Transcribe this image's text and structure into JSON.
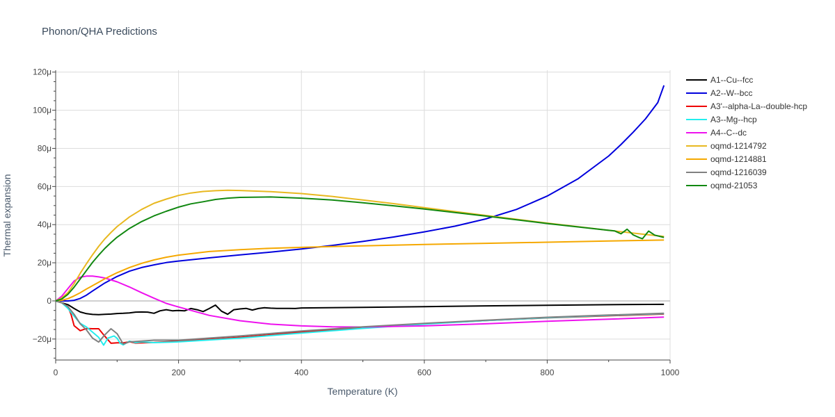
{
  "chart_data": {
    "type": "line",
    "title": "Phonon/QHA Predictions",
    "xlabel": "Temperature (K)",
    "ylabel": "Thermal expansion",
    "xlim": [
      0,
      1000
    ],
    "ylim": [
      -31,
      121
    ],
    "xticks": [
      0,
      200,
      400,
      600,
      800,
      1000
    ],
    "xtick_labels": [
      "0",
      "200",
      "400",
      "600",
      "800",
      "1000"
    ],
    "yticks": [
      -20,
      0,
      20,
      40,
      60,
      80,
      100,
      120
    ],
    "ytick_labels": [
      "−20μ",
      "0",
      "20μ",
      "40μ",
      "60μ",
      "80μ",
      "100μ",
      "120μ"
    ],
    "y_unit": "μ",
    "grid": true,
    "legend_position": "right",
    "series": [
      {
        "name": "A1--Cu--fcc",
        "color": "#000000",
        "x": [
          0,
          10,
          20,
          30,
          40,
          50,
          60,
          70,
          80,
          90,
          100,
          110,
          120,
          130,
          140,
          150,
          160,
          170,
          180,
          190,
          200,
          210,
          220,
          230,
          240,
          250,
          260,
          270,
          280,
          290,
          300,
          310,
          320,
          330,
          340,
          350,
          360,
          380,
          390,
          400,
          500,
          600,
          700,
          800,
          900,
          990
        ],
        "y": [
          0,
          -1,
          -2,
          -4,
          -5.8,
          -6.7,
          -7.1,
          -7.2,
          -7.0,
          -6.9,
          -6.6,
          -6.5,
          -6.3,
          -5.9,
          -5.8,
          -5.9,
          -6.5,
          -5.2,
          -4.6,
          -5.2,
          -5.0,
          -5.2,
          -4.0,
          -4.6,
          -5.6,
          -4.0,
          -2.2,
          -5.4,
          -7.0,
          -4.6,
          -4.2,
          -3.9,
          -4.8,
          -4.0,
          -3.6,
          -3.8,
          -3.9,
          -3.9,
          -4.0,
          -3.7,
          -3.4,
          -3.0,
          -2.6,
          -2.3,
          -2.0,
          -1.8
        ]
      },
      {
        "name": "A2--W--bcc",
        "color": "#0000dd",
        "x": [
          0,
          10,
          20,
          30,
          40,
          50,
          60,
          80,
          100,
          120,
          140,
          160,
          180,
          200,
          250,
          300,
          350,
          400,
          450,
          500,
          550,
          600,
          650,
          700,
          750,
          800,
          850,
          900,
          920,
          940,
          960,
          980,
          990
        ],
        "y": [
          0,
          0,
          0,
          0.3,
          1.3,
          3.0,
          5.2,
          9.4,
          12.8,
          15.6,
          17.5,
          18.9,
          20.1,
          20.9,
          22.6,
          24.1,
          25.6,
          27.2,
          29.1,
          31.2,
          33.5,
          36.2,
          39.2,
          43.0,
          48.0,
          55.0,
          64.0,
          76.0,
          82.0,
          88.5,
          95.5,
          104.0,
          113.0
        ]
      },
      {
        "name": "A3'--alpha-La--double-hcp",
        "color": "#ee0000",
        "x": [
          0,
          10,
          20,
          25,
          30,
          40,
          50,
          60,
          70,
          80,
          90,
          100,
          110,
          120,
          130,
          140,
          150,
          160,
          170,
          200,
          300,
          400,
          500,
          600,
          700,
          800,
          900,
          990
        ],
        "y": [
          0,
          -1,
          -3,
          -7,
          -13,
          -15.6,
          -14.5,
          -14.6,
          -14.6,
          -18.5,
          -22.2,
          -22.0,
          -22.0,
          -21.4,
          -22.1,
          -22.0,
          -21.9,
          -21.8,
          -21.6,
          -21.2,
          -19.1,
          -16.4,
          -13.8,
          -12.0,
          -10.3,
          -8.9,
          -7.8,
          -6.9
        ]
      },
      {
        "name": "A3--Mg--hcp",
        "color": "#22eeee",
        "x": [
          0,
          10,
          20,
          30,
          40,
          50,
          60,
          70,
          78,
          85,
          95,
          100,
          105,
          110,
          120,
          130,
          140,
          160,
          200,
          300,
          400,
          500,
          600,
          700,
          800,
          900,
          990
        ],
        "y": [
          0,
          -1,
          -4,
          -8,
          -11.8,
          -13.7,
          -16.4,
          -19.1,
          -23.2,
          -19.5,
          -18.4,
          -19.6,
          -22.2,
          -23.1,
          -21.1,
          -21.9,
          -21.5,
          -21.9,
          -21.5,
          -19.5,
          -16.9,
          -14.4,
          -12.2,
          -10.3,
          -8.8,
          -7.6,
          -6.7
        ]
      },
      {
        "name": "A4--C--dc",
        "color": "#ee11ee",
        "x": [
          0,
          10,
          20,
          30,
          40,
          50,
          60,
          70,
          80,
          100,
          120,
          140,
          160,
          180,
          200,
          250,
          300,
          350,
          400,
          450,
          500,
          600,
          700,
          800,
          900,
          990
        ],
        "y": [
          0,
          2.5,
          6.5,
          10.4,
          12.4,
          13.0,
          13.0,
          12.6,
          12.0,
          10.0,
          7.3,
          4.3,
          1.4,
          -1.3,
          -3.2,
          -7.6,
          -10.4,
          -12.2,
          -13.1,
          -13.6,
          -13.7,
          -13.1,
          -12.0,
          -10.7,
          -9.6,
          -8.5
        ]
      },
      {
        "name": "oqmd-1214792",
        "color": "#e8b820",
        "x": [
          0,
          10,
          20,
          30,
          40,
          50,
          60,
          70,
          80,
          90,
          100,
          120,
          140,
          160,
          180,
          200,
          220,
          240,
          260,
          280,
          300,
          350,
          400,
          450,
          500,
          550,
          600,
          700,
          800,
          900,
          950,
          990
        ],
        "y": [
          0,
          1.5,
          4.4,
          9.0,
          14.5,
          19.5,
          24.2,
          28.6,
          32.5,
          35.9,
          39.0,
          44.0,
          48.0,
          51.2,
          53.4,
          55.3,
          56.6,
          57.4,
          57.8,
          58.0,
          57.9,
          57.3,
          56.3,
          54.8,
          52.9,
          51.0,
          48.9,
          44.8,
          40.8,
          37.0,
          35.2,
          33.8
        ]
      },
      {
        "name": "oqmd-1214881",
        "color": "#f5a800",
        "x": [
          0,
          10,
          20,
          30,
          40,
          50,
          60,
          70,
          80,
          90,
          100,
          120,
          140,
          160,
          180,
          200,
          250,
          300,
          350,
          400,
          450,
          500,
          600,
          700,
          800,
          900,
          990
        ],
        "y": [
          0,
          0.3,
          1.2,
          2.6,
          4.3,
          6.2,
          8.0,
          9.8,
          11.6,
          13.2,
          14.8,
          17.5,
          19.7,
          21.5,
          22.9,
          24.0,
          25.9,
          26.9,
          27.6,
          28.1,
          28.5,
          28.9,
          29.6,
          30.2,
          30.8,
          31.4,
          31.9
        ]
      },
      {
        "name": "oqmd-1216039",
        "color": "#808080",
        "x": [
          0,
          10,
          20,
          30,
          40,
          50,
          60,
          70,
          80,
          90,
          100,
          110,
          120,
          140,
          160,
          200,
          300,
          400,
          500,
          600,
          700,
          800,
          900,
          990
        ],
        "y": [
          0,
          -1,
          -3,
          -7,
          -12,
          -15.2,
          -19.5,
          -21.6,
          -17.8,
          -14.6,
          -17.2,
          -22.6,
          -21.5,
          -21.1,
          -20.6,
          -20.6,
          -18.4,
          -15.8,
          -13.6,
          -11.8,
          -10.1,
          -8.6,
          -7.4,
          -6.5
        ]
      },
      {
        "name": "oqmd-21053",
        "color": "#118811",
        "x": [
          0,
          10,
          20,
          30,
          40,
          50,
          60,
          70,
          80,
          90,
          100,
          120,
          140,
          160,
          180,
          200,
          220,
          240,
          260,
          280,
          300,
          350,
          400,
          450,
          500,
          550,
          600,
          700,
          800,
          900,
          910,
          920,
          930,
          940,
          950,
          955,
          965,
          975,
          990
        ],
        "y": [
          0,
          1.0,
          3.5,
          7.2,
          11.5,
          15.9,
          20.2,
          24.0,
          27.5,
          30.6,
          33.4,
          38.0,
          41.6,
          44.6,
          47.0,
          49.2,
          50.9,
          52.0,
          53.2,
          53.9,
          54.3,
          54.5,
          53.9,
          52.9,
          51.5,
          49.9,
          48.2,
          44.5,
          40.6,
          37.0,
          36.7,
          35.2,
          37.6,
          34.6,
          33.2,
          32.6,
          36.6,
          34.5,
          33.3
        ]
      }
    ]
  }
}
